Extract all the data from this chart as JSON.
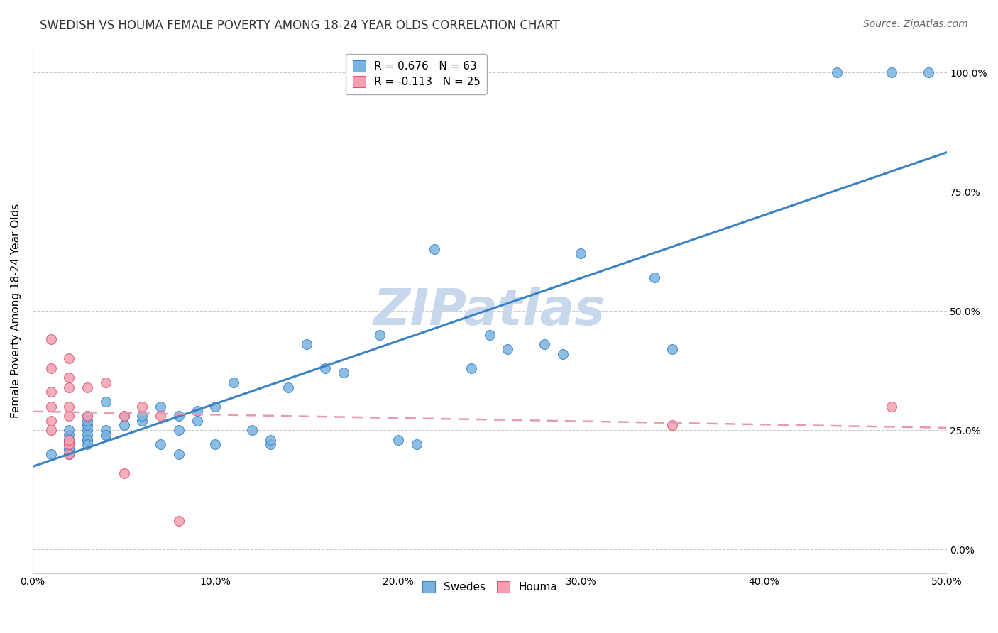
{
  "title": "SWEDISH VS HOUMA FEMALE POVERTY AMONG 18-24 YEAR OLDS CORRELATION CHART",
  "source": "Source: ZipAtlas.com",
  "xlabel_ticks": [
    "0.0%",
    "10.0%",
    "20.0%",
    "30.0%",
    "40.0%",
    "50.0%"
  ],
  "ylabel_ticks": [
    "0.0%",
    "25.0%",
    "50.0%",
    "75.0%",
    "100.0%"
  ],
  "xlabel_vals": [
    0.0,
    0.1,
    0.2,
    0.3,
    0.4,
    0.5
  ],
  "ylabel_vals": [
    0.0,
    0.25,
    0.5,
    0.75,
    1.0
  ],
  "xlim": [
    0.0,
    0.5
  ],
  "ylim": [
    -0.05,
    1.05
  ],
  "ylabel": "Female Poverty Among 18-24 Year Olds",
  "swedes_label": "Swedes",
  "houma_label": "Houma",
  "legend_blue_text": "R = 0.676   N = 63",
  "legend_pink_text": "R = -0.113   N = 25",
  "blue_color": "#7ab3e0",
  "blue_line_color": "#3b82c4",
  "pink_color": "#f4a0b0",
  "pink_line_color": "#e05575",
  "pink_dash_color": "#e899aa",
  "watermark": "ZIPatlas",
  "watermark_color": "#c8d8ec",
  "background_color": "#ffffff",
  "grid_color": "#cccccc",
  "swedes_x": [
    0.01,
    0.02,
    0.02,
    0.02,
    0.02,
    0.02,
    0.02,
    0.02,
    0.02,
    0.02,
    0.02,
    0.02,
    0.02,
    0.02,
    0.03,
    0.03,
    0.03,
    0.03,
    0.03,
    0.03,
    0.03,
    0.03,
    0.03,
    0.04,
    0.04,
    0.04,
    0.04,
    0.05,
    0.05,
    0.06,
    0.06,
    0.07,
    0.07,
    0.08,
    0.08,
    0.08,
    0.09,
    0.09,
    0.1,
    0.1,
    0.11,
    0.12,
    0.13,
    0.13,
    0.14,
    0.15,
    0.16,
    0.17,
    0.19,
    0.2,
    0.21,
    0.22,
    0.24,
    0.25,
    0.26,
    0.28,
    0.29,
    0.3,
    0.34,
    0.35,
    0.44,
    0.47,
    0.49
  ],
  "swedes_y": [
    0.2,
    0.22,
    0.21,
    0.2,
    0.2,
    0.22,
    0.23,
    0.23,
    0.22,
    0.24,
    0.23,
    0.22,
    0.21,
    0.25,
    0.23,
    0.26,
    0.25,
    0.24,
    0.23,
    0.22,
    0.26,
    0.27,
    0.28,
    0.24,
    0.25,
    0.24,
    0.31,
    0.28,
    0.26,
    0.27,
    0.28,
    0.3,
    0.22,
    0.25,
    0.28,
    0.2,
    0.27,
    0.29,
    0.3,
    0.22,
    0.35,
    0.25,
    0.22,
    0.23,
    0.34,
    0.43,
    0.38,
    0.37,
    0.45,
    0.23,
    0.22,
    0.63,
    0.38,
    0.45,
    0.42,
    0.43,
    0.41,
    0.62,
    0.57,
    0.42,
    1.0,
    1.0,
    1.0
  ],
  "houma_x": [
    0.01,
    0.01,
    0.01,
    0.01,
    0.01,
    0.01,
    0.02,
    0.02,
    0.02,
    0.02,
    0.02,
    0.02,
    0.02,
    0.02,
    0.02,
    0.03,
    0.03,
    0.04,
    0.05,
    0.05,
    0.06,
    0.07,
    0.08,
    0.35,
    0.47
  ],
  "houma_y": [
    0.25,
    0.27,
    0.3,
    0.33,
    0.38,
    0.44,
    0.2,
    0.22,
    0.22,
    0.23,
    0.28,
    0.3,
    0.34,
    0.36,
    0.4,
    0.28,
    0.34,
    0.35,
    0.28,
    0.16,
    0.3,
    0.28,
    0.06,
    0.26,
    0.3
  ],
  "title_fontsize": 12,
  "axis_label_fontsize": 11,
  "tick_fontsize": 10,
  "legend_fontsize": 11,
  "source_fontsize": 10,
  "marker_size": 100
}
